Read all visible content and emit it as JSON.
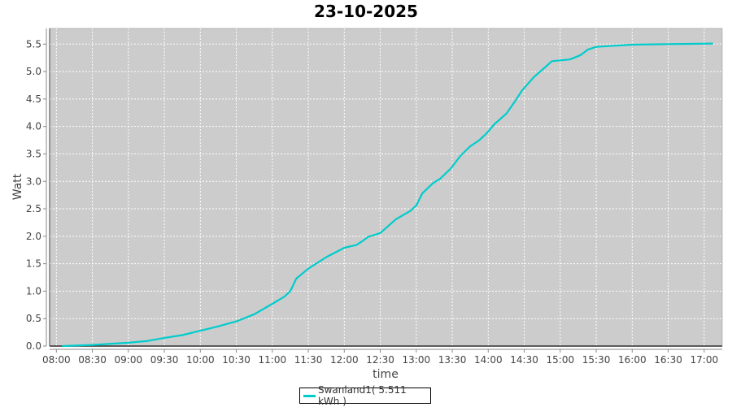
{
  "chart_data": {
    "type": "line",
    "title": "23-10-2025",
    "xlabel": "time",
    "ylabel": "Watt",
    "ylim": [
      0,
      5.79
    ],
    "x_ticks": [
      "08:00",
      "08:30",
      "09:00",
      "09:30",
      "10:00",
      "10:30",
      "11:00",
      "11:30",
      "12:00",
      "12:30",
      "13:00",
      "13:30",
      "14:00",
      "14:30",
      "15:00",
      "15:30",
      "16:00",
      "16:30",
      "17:00"
    ],
    "y_ticks": [
      "0.0",
      "0.5",
      "1.0",
      "1.5",
      "2.0",
      "2.5",
      "3.0",
      "3.5",
      "4.0",
      "4.5",
      "5.0",
      "5.5"
    ],
    "grid": true,
    "legend_position": "bottom",
    "background": "#cccccc",
    "series": [
      {
        "name": "Swanland1( 5.511 kWh )",
        "color": "#00cccc",
        "x": [
          "08:05",
          "08:30",
          "09:00",
          "09:15",
          "09:30",
          "09:45",
          "10:00",
          "10:15",
          "10:30",
          "10:45",
          "11:00",
          "11:10",
          "11:15",
          "11:20",
          "11:30",
          "11:45",
          "12:00",
          "12:10",
          "12:15",
          "12:20",
          "12:30",
          "12:43",
          "12:55",
          "13:00",
          "13:05",
          "13:14",
          "13:20",
          "13:29",
          "13:37",
          "13:45",
          "13:52",
          "13:58",
          "14:05",
          "14:15",
          "14:22",
          "14:28",
          "14:38",
          "14:48",
          "14:53",
          "15:08",
          "15:17",
          "15:23",
          "15:30",
          "15:45",
          "16:00",
          "16:30",
          "17:07"
        ],
        "y": [
          0.0,
          0.02,
          0.06,
          0.09,
          0.15,
          0.2,
          0.28,
          0.36,
          0.45,
          0.58,
          0.77,
          0.9,
          1.0,
          1.23,
          1.41,
          1.62,
          1.79,
          1.84,
          1.91,
          1.99,
          2.06,
          2.31,
          2.46,
          2.56,
          2.78,
          2.97,
          3.05,
          3.24,
          3.47,
          3.64,
          3.74,
          3.86,
          4.04,
          4.23,
          4.45,
          4.65,
          4.9,
          5.09,
          5.19,
          5.22,
          5.3,
          5.4,
          5.45,
          5.47,
          5.49,
          5.5,
          5.51
        ]
      }
    ]
  }
}
